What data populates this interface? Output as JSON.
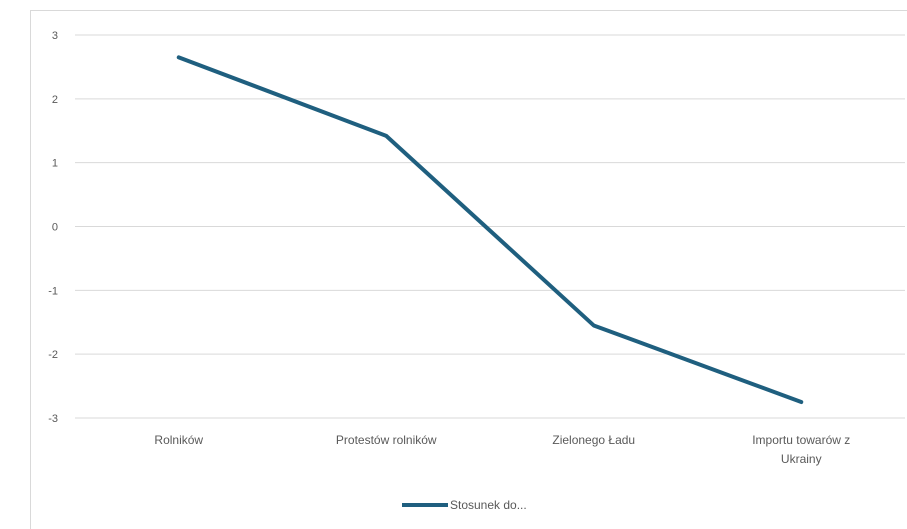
{
  "chart_data": {
    "type": "line",
    "categories": [
      "Rolników",
      "Protestów rolników",
      "Zielonego Ładu",
      "Importu towarów z Ukrainy"
    ],
    "category_lines": [
      [
        "Rolników"
      ],
      [
        "Protestów rolników"
      ],
      [
        "Zielonego Ładu"
      ],
      [
        "Importu towarów z",
        "Ukrainy"
      ]
    ],
    "series": [
      {
        "name": "Stosunek do...",
        "values": [
          2.65,
          1.42,
          -1.55,
          -2.75
        ],
        "color": "#1f5f7f"
      }
    ],
    "ylim": [
      -3,
      3
    ],
    "yticks": [
      "3",
      "2",
      "1",
      "0",
      "-1",
      "-2",
      "-3"
    ],
    "ytick_values": [
      3,
      2,
      1,
      0,
      -1,
      -2,
      -3
    ],
    "grid": true,
    "legend": "bottom"
  }
}
